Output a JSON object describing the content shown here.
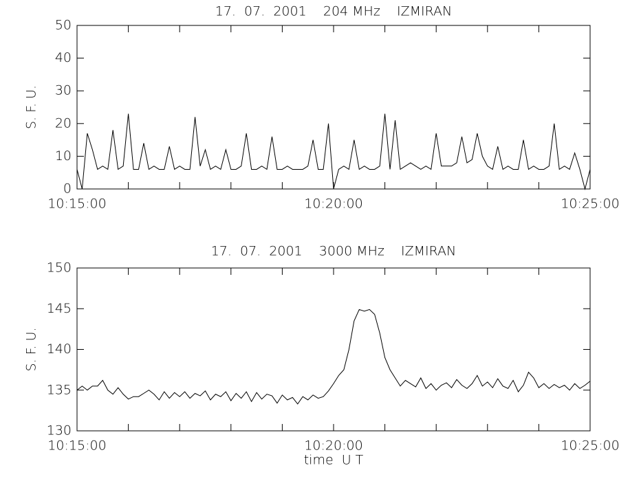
{
  "chart_data": [
    {
      "type": "line",
      "title": "17.  07.  2001    204 MHz    IZMIRAN",
      "ylabel": "S. F. U.",
      "x": [
        36900,
        36906,
        36912,
        36918,
        36924,
        36930,
        36936,
        36942,
        36948,
        36954,
        36960,
        36966,
        36972,
        36978,
        36984,
        36990,
        36996,
        37002,
        37008,
        37014,
        37020,
        37026,
        37032,
        37038,
        37044,
        37050,
        37056,
        37062,
        37068,
        37074,
        37080,
        37086,
        37092,
        37098,
        37104,
        37110,
        37116,
        37122,
        37128,
        37134,
        37140,
        37146,
        37152,
        37158,
        37164,
        37170,
        37176,
        37182,
        37188,
        37194,
        37200,
        37206,
        37212,
        37218,
        37224,
        37230,
        37236,
        37242,
        37248,
        37254,
        37260,
        37266,
        37272,
        37278,
        37284,
        37290,
        37296,
        37302,
        37308,
        37314,
        37320,
        37326,
        37332,
        37338,
        37344,
        37350,
        37356,
        37362,
        37368,
        37374,
        37380,
        37386,
        37392,
        37398,
        37404,
        37410,
        37416,
        37422,
        37428,
        37434,
        37440,
        37446,
        37452,
        37458,
        37464,
        37470,
        37476,
        37482,
        37488,
        37494,
        37500
      ],
      "values": [
        6,
        0,
        17,
        12,
        6,
        7,
        6,
        18,
        6,
        7,
        23,
        6,
        6,
        14,
        6,
        7,
        6,
        6,
        13,
        6,
        7,
        6,
        6,
        22,
        7,
        12,
        6,
        7,
        6,
        12,
        6,
        6,
        7,
        17,
        6,
        6,
        7,
        6,
        16,
        6,
        6,
        7,
        6,
        6,
        6,
        7,
        15,
        6,
        6,
        20,
        0,
        6,
        7,
        6,
        15,
        6,
        7,
        6,
        6,
        7,
        23,
        6,
        21,
        6,
        7,
        8,
        7,
        6,
        7,
        6,
        17,
        7,
        7,
        7,
        8,
        16,
        8,
        9,
        17,
        10,
        7,
        6,
        13,
        6,
        7,
        6,
        6,
        15,
        6,
        7,
        6,
        6,
        7,
        20,
        6,
        7,
        6,
        11,
        6,
        0,
        6
      ],
      "color": "#000000",
      "xlim": [
        36900,
        37500
      ],
      "xticks": [
        {
          "value": 36900,
          "label": "10:15:00"
        },
        {
          "value": 37200,
          "label": "10:20:00"
        },
        {
          "value": 37500,
          "label": "10:25:00"
        }
      ],
      "xminorticks": [
        36960,
        37020,
        37080,
        37140,
        37260,
        37320,
        37380,
        37440
      ],
      "ylim": [
        0,
        50
      ],
      "yticks": [
        0,
        10,
        20,
        30,
        40,
        50
      ]
    },
    {
      "type": "line",
      "title": "17.  07.  2001    3000 MHz    IZMIRAN",
      "ylabel": "S. F. U.",
      "xlabel": "time  U T",
      "x": [
        36900,
        36906,
        36912,
        36918,
        36924,
        36930,
        36936,
        36942,
        36948,
        36954,
        36960,
        36966,
        36972,
        36978,
        36984,
        36990,
        36996,
        37002,
        37008,
        37014,
        37020,
        37026,
        37032,
        37038,
        37044,
        37050,
        37056,
        37062,
        37068,
        37074,
        37080,
        37086,
        37092,
        37098,
        37104,
        37110,
        37116,
        37122,
        37128,
        37134,
        37140,
        37146,
        37152,
        37158,
        37164,
        37170,
        37176,
        37182,
        37188,
        37194,
        37200,
        37206,
        37212,
        37218,
        37224,
        37230,
        37236,
        37242,
        37248,
        37254,
        37260,
        37266,
        37272,
        37278,
        37284,
        37290,
        37296,
        37302,
        37308,
        37314,
        37320,
        37326,
        37332,
        37338,
        37344,
        37350,
        37356,
        37362,
        37368,
        37374,
        37380,
        37386,
        37392,
        37398,
        37404,
        37410,
        37416,
        37422,
        37428,
        37434,
        37440,
        37446,
        37452,
        37458,
        37464,
        37470,
        37476,
        37482,
        37488,
        37494,
        37500
      ],
      "values": [
        135,
        135.5,
        135,
        135.5,
        135.5,
        136.2,
        135,
        134.5,
        135.3,
        134.5,
        133.9,
        134.2,
        134.2,
        134.6,
        135,
        134.5,
        133.8,
        134.8,
        134,
        134.7,
        134.2,
        134.8,
        134,
        134.6,
        134.3,
        134.9,
        133.8,
        134.5,
        134.2,
        134.8,
        133.7,
        134.6,
        134,
        134.8,
        133.6,
        134.7,
        133.9,
        134.5,
        134.3,
        133.4,
        134.4,
        133.8,
        134.1,
        133.3,
        134.2,
        133.8,
        134.4,
        134,
        134.2,
        134.9,
        135.8,
        136.8,
        137.5,
        140,
        143.5,
        144.9,
        144.7,
        144.9,
        144.3,
        142,
        139,
        137.5,
        136.5,
        135.5,
        136.2,
        135.8,
        135.4,
        136.5,
        135.2,
        135.8,
        135,
        135.6,
        135.9,
        135.3,
        136.3,
        135.6,
        135.2,
        135.8,
        136.8,
        135.5,
        136,
        135.3,
        136.4,
        135.5,
        135.2,
        136.2,
        134.8,
        135.6,
        137.2,
        136.5,
        135.3,
        135.8,
        135.2,
        135.7,
        135.3,
        135.6,
        135,
        135.8,
        135.2,
        135.6,
        136.1
      ],
      "color": "#000000",
      "xlim": [
        36900,
        37500
      ],
      "xticks": [
        {
          "value": 36900,
          "label": "10:15:00"
        },
        {
          "value": 37200,
          "label": "10:20:00"
        },
        {
          "value": 37500,
          "label": "10:25:00"
        }
      ],
      "xminorticks": [
        36960,
        37020,
        37080,
        37140,
        37260,
        37320,
        37380,
        37440
      ],
      "ylim": [
        130,
        150
      ],
      "yticks": [
        130,
        135,
        140,
        145,
        150
      ]
    }
  ]
}
